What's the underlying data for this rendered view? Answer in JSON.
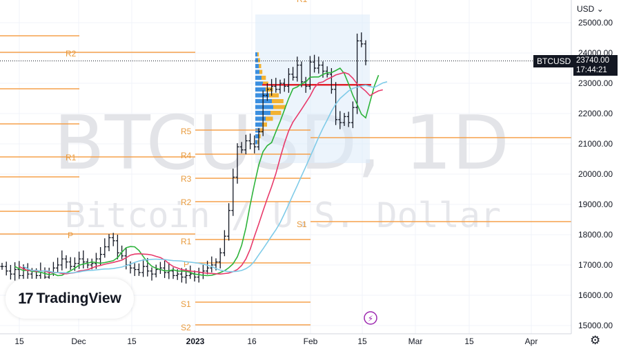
{
  "chart_data": {
    "type": "candlestick",
    "symbol": "BTCUSD",
    "interval": "1D",
    "watermark_title": "BTCUSD, 1D",
    "watermark_subtitle": "Bitcoin / U.S. Dollar",
    "currency": "USD",
    "last_price": "23740.00",
    "countdown": "17:44:21",
    "ylim": [
      14900,
      25500
    ],
    "y_ticks": [
      "15000.00",
      "16000.00",
      "17000.00",
      "18000.00",
      "19000.00",
      "20000.00",
      "21000.00",
      "22000.00",
      "23000.00",
      "24000.00",
      "25000.00"
    ],
    "x_ticks": [
      "15",
      "Dec",
      "15",
      "2023",
      "16",
      "Feb",
      "15",
      "Mar",
      "15",
      "Apr"
    ],
    "pivot_labels": [
      "R2",
      "R1",
      "P",
      "R5",
      "R4",
      "R3",
      "R2",
      "R1",
      "P",
      "S1",
      "S2",
      "S1",
      "R1"
    ],
    "closes": [
      16950,
      16800,
      16700,
      16850,
      16650,
      16900,
      16700,
      16500,
      16650,
      16800,
      16600,
      16750,
      16900,
      17000,
      17200,
      17100,
      16950,
      17050,
      17200,
      17100,
      17000,
      17050,
      17200,
      17350,
      17600,
      17900,
      17800,
      17400,
      17300,
      17000,
      16900,
      16850,
      16750,
      16950,
      16800,
      16700,
      16850,
      16900,
      16750,
      16800,
      16650,
      16700,
      16600,
      16650,
      16700,
      16600,
      16750,
      16800,
      16900,
      17000,
      17100,
      17400,
      17950,
      18800,
      19900,
      20900,
      20800,
      21100,
      21000,
      20900,
      21400,
      22600,
      22800,
      22900,
      22800,
      23000,
      22900,
      23300,
      23200,
      23600,
      23050,
      22900,
      23700,
      23500,
      23600,
      23400,
      23300,
      22800,
      21800,
      21700,
      21900,
      21700,
      22200,
      24400,
      24300,
      23740
    ],
    "series": [
      {
        "name": "",
        "color": "#2cb33a"
      },
      {
        "name": "",
        "color": "#e8396a"
      },
      {
        "name": "",
        "color": "#7fcbe8"
      }
    ],
    "grid": true,
    "current_price_line": 23740,
    "pivot_color": "#f5a04a",
    "poc_level": 22950
  },
  "brand": {
    "name": "TradingView",
    "mark": "17"
  },
  "colors": {
    "text": "#131722",
    "grid": "#f0f3fa"
  }
}
